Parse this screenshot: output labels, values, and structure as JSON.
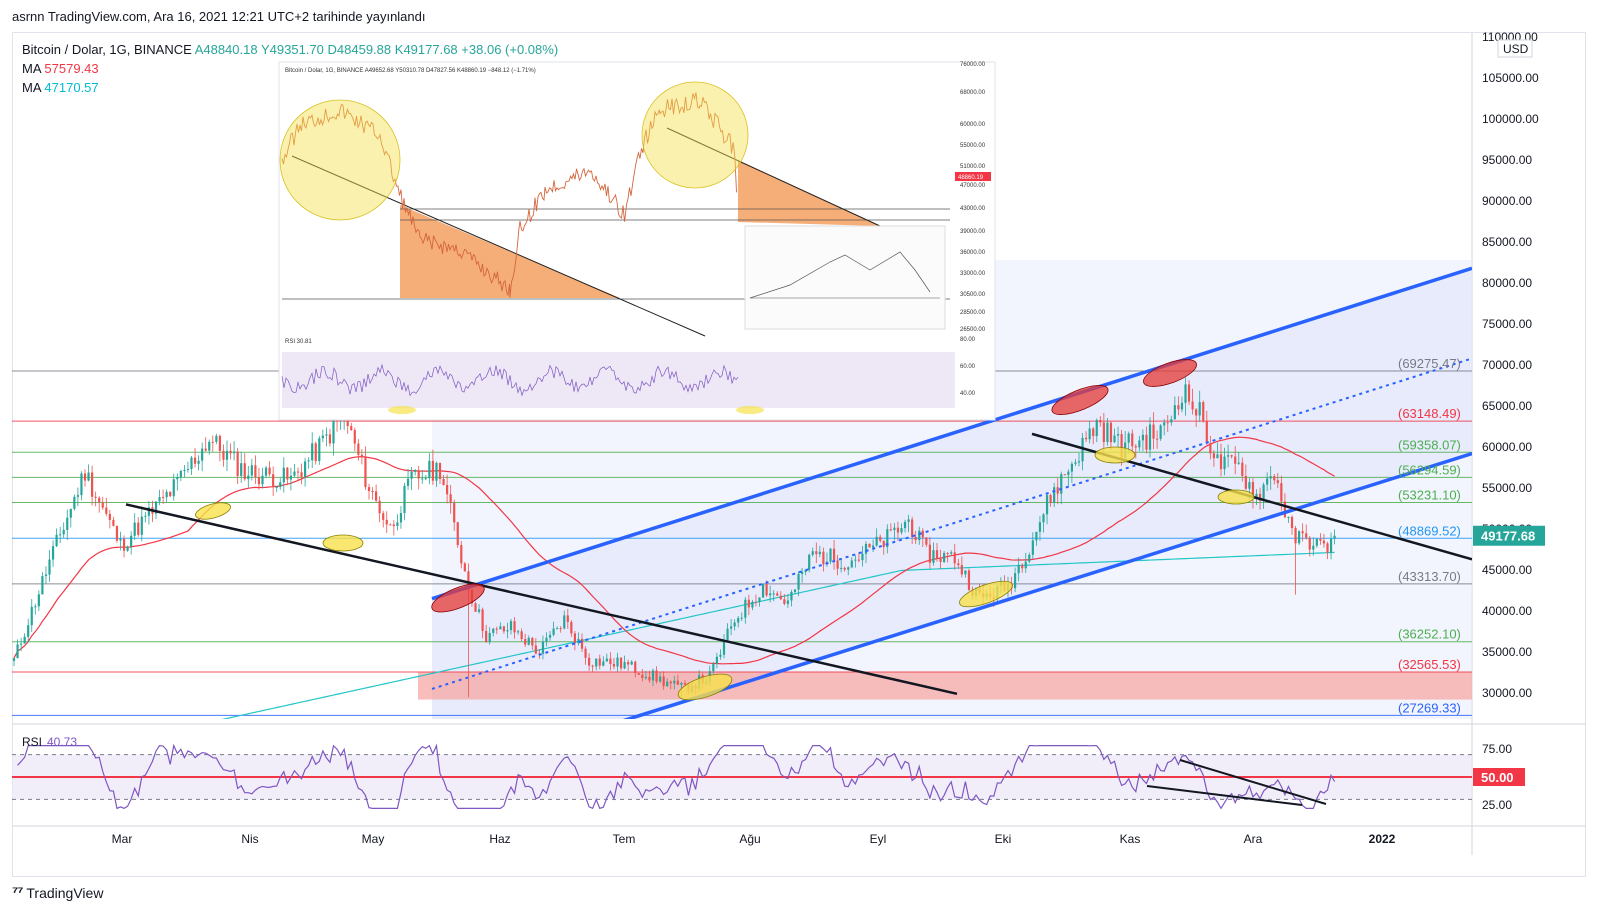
{
  "caption": "asrnn TradingView.com, Ara 16, 2021 12:21 UTC+2 tarihinde yayınlandı",
  "header": {
    "symbol": "Bitcoin / Dolar, 1G, BINANCE",
    "ohlc": [
      {
        "k": "A",
        "v": "48840.18"
      },
      {
        "k": "Y",
        "v": "49351.70"
      },
      {
        "k": "D",
        "v": "48459.88"
      },
      {
        "k": "K",
        "v": "49177.68"
      }
    ],
    "change": "+38.06 (+0.08%)",
    "ma1": {
      "label": "MA",
      "value": "57579.43",
      "color": "#f23645"
    },
    "ma2": {
      "label": "MA",
      "value": "47170.57",
      "color": "#22ab94"
    }
  },
  "currency": "USD",
  "colors": {
    "up": "#26a69a",
    "down": "#ef5350",
    "channel": "#2962ff",
    "ma_red": "#f23645",
    "ma_cyan": "#22c6c8",
    "rsi": "#7e57c2",
    "ellipse_yellow": "#f7e14b",
    "ellipse_red": "#e53935"
  },
  "chart_data": [
    {
      "type": "candlestick",
      "title": "Bitcoin / Dolar, 1G, BINANCE",
      "xlabel": "",
      "ylabel": "USD",
      "x_ticks": [
        "Mar",
        "Nis",
        "May",
        "Haz",
        "Tem",
        "Ağu",
        "Eyl",
        "Eki",
        "Kas",
        "Ara",
        "2022"
      ],
      "y_ticks": [
        "110000.00",
        "105000.00",
        "100000.00",
        "95000.00",
        "90000.00",
        "85000.00",
        "80000.00",
        "75000.00",
        "70000.00",
        "65000.00",
        "60000.00",
        "55000.00",
        "50000.00",
        "45000.00",
        "40000.00",
        "35000.00",
        "30000.00"
      ],
      "last_price": "49177.68",
      "levels": [
        {
          "label": "(69275.47)",
          "value": 69275.47,
          "color": "#787b86"
        },
        {
          "label": "(63148.49)",
          "value": 63148.49,
          "color": "#f23645"
        },
        {
          "label": "(59358.07)",
          "value": 59358.07,
          "color": "#4caf50"
        },
        {
          "label": "(56294.59)",
          "value": 56294.59,
          "color": "#4caf50"
        },
        {
          "label": "(53231.10)",
          "value": 53231.1,
          "color": "#4caf50"
        },
        {
          "label": "(48869.52)",
          "value": 48869.52,
          "color": "#2196f3"
        },
        {
          "label": "(43313.70)",
          "value": 43313.7,
          "color": "#787b86"
        },
        {
          "label": "(36252.10)",
          "value": 36252.1,
          "color": "#4caf50"
        },
        {
          "label": "(32565.53)",
          "value": 32565.53,
          "color": "#f23645"
        },
        {
          "label": "(27269.33)",
          "value": 27269.33,
          "color": "#2962ff"
        }
      ],
      "anchors": [
        {
          "d": 0,
          "p": 34000
        },
        {
          "d": 10,
          "p": 46000
        },
        {
          "d": 20,
          "p": 57000
        },
        {
          "d": 30,
          "p": 48000
        },
        {
          "d": 45,
          "p": 55000
        },
        {
          "d": 55,
          "p": 61000
        },
        {
          "d": 65,
          "p": 57000
        },
        {
          "d": 78,
          "p": 56000
        },
        {
          "d": 86,
          "p": 60000
        },
        {
          "d": 93,
          "p": 64000
        },
        {
          "d": 100,
          "p": 55000
        },
        {
          "d": 106,
          "p": 50000
        },
        {
          "d": 112,
          "p": 56000
        },
        {
          "d": 120,
          "p": 57500
        },
        {
          "d": 128,
          "p": 43000
        },
        {
          "d": 133,
          "p": 37000
        },
        {
          "d": 140,
          "p": 38000
        },
        {
          "d": 148,
          "p": 35000
        },
        {
          "d": 155,
          "p": 39000
        },
        {
          "d": 162,
          "p": 34000
        },
        {
          "d": 172,
          "p": 33500
        },
        {
          "d": 180,
          "p": 32000
        },
        {
          "d": 188,
          "p": 30500
        },
        {
          "d": 196,
          "p": 32000
        },
        {
          "d": 203,
          "p": 39000
        },
        {
          "d": 211,
          "p": 43000
        },
        {
          "d": 218,
          "p": 41000
        },
        {
          "d": 225,
          "p": 47000
        },
        {
          "d": 235,
          "p": 46000
        },
        {
          "d": 245,
          "p": 48500
        },
        {
          "d": 252,
          "p": 51000
        },
        {
          "d": 257,
          "p": 47000
        },
        {
          "d": 265,
          "p": 46500
        },
        {
          "d": 272,
          "p": 41500
        },
        {
          "d": 280,
          "p": 43000
        },
        {
          "d": 286,
          "p": 48000
        },
        {
          "d": 292,
          "p": 54000
        },
        {
          "d": 298,
          "p": 58000
        },
        {
          "d": 305,
          "p": 63000
        },
        {
          "d": 312,
          "p": 60000
        },
        {
          "d": 318,
          "p": 61000
        },
        {
          "d": 324,
          "p": 62000
        },
        {
          "d": 329,
          "p": 67000
        },
        {
          "d": 334,
          "p": 64000
        },
        {
          "d": 339,
          "p": 58000
        },
        {
          "d": 345,
          "p": 57500
        },
        {
          "d": 350,
          "p": 54000
        },
        {
          "d": 355,
          "p": 57000
        },
        {
          "d": 360,
          "p": 49000
        },
        {
          "d": 366,
          "p": 48500
        },
        {
          "d": 369,
          "p": 47500
        },
        {
          "d": 372,
          "p": 49177
        }
      ]
    },
    {
      "type": "line",
      "title": "RSI",
      "value_label": "40.73",
      "y_ticks": [
        "75.00",
        "50.00",
        "25.00"
      ],
      "highlight": "50.00"
    },
    {
      "type": "line",
      "title": "Bitcoin / Dolar, 1G, BINANCE",
      "header": "Bitcoin / Dolar, 1G, BINANCE A49652.68 Y50310.78 D47827.56 K48860.19 −848.12 (−1.71%)",
      "y_ticks": [
        "76000.00",
        "68000.00",
        "60000.00",
        "55000.00",
        "51000.00",
        "47000.00",
        "43000.00",
        "39000.00",
        "36000.00",
        "33000.00",
        "30500.00",
        "28500.00",
        "26500.00"
      ],
      "price_tag": "48860.19",
      "rsi_label": "RSI 30.81",
      "rsi_ticks": [
        "80.00",
        "60.00",
        "40.00"
      ]
    }
  ],
  "footer": {
    "brand": "TradingView"
  }
}
